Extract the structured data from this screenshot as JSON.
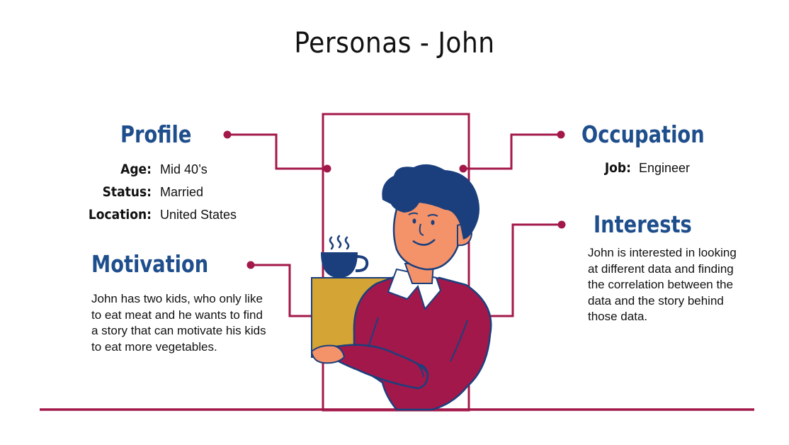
{
  "title": "Personas - John",
  "profile": {
    "heading": "Profile",
    "rows": [
      {
        "label": "Age:",
        "value": "Mid 40’s"
      },
      {
        "label": "Status:",
        "value": "Married"
      },
      {
        "label": "Location:",
        "value": "United States"
      }
    ]
  },
  "motivation": {
    "heading": "Motivation",
    "text": "John has two kids, who only like to eat meat and he wants to find a story that can motivate his kids to eat more vegetables."
  },
  "occupation": {
    "heading": "Occupation",
    "label": "Job:",
    "value": "Engineer"
  },
  "interests": {
    "heading": "Interests",
    "text": "John is interested in looking at different data and finding the correlation between the data and the story behind those data."
  },
  "colors": {
    "heading": "#1f4e8c",
    "accent": "#a3184a",
    "sweater": "#a3184a",
    "box": "#d4a534",
    "hair": "#1b3f7d",
    "skin": "#f4936a"
  }
}
